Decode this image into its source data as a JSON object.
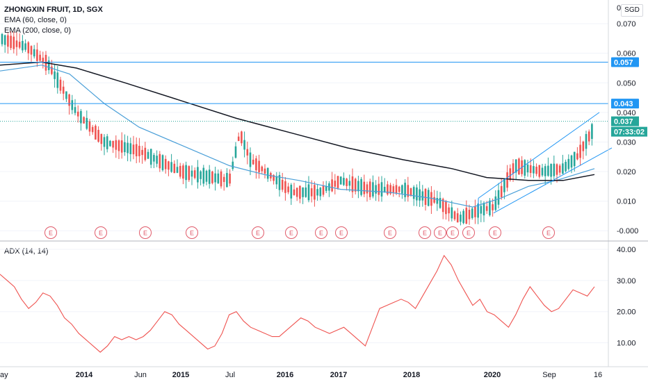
{
  "chart_data": [
    {
      "type": "candlestick",
      "title": "ZHONGXIN FRUIT, 1D, SGX",
      "currency": "SGD",
      "top_cut_tick": "0",
      "y_ticks": [
        0.07,
        0.06,
        0.05,
        0.04,
        0.03,
        0.02,
        0.01,
        0.0
      ],
      "y_tick_labels": [
        "0.070",
        "0.060",
        "0.050",
        "0.040",
        "0.030",
        "0.020",
        "0.010",
        "-0.000"
      ],
      "ylim": [
        -0.003,
        0.078
      ],
      "x_tick_labels": [
        "ay",
        "2014",
        "Jun",
        "2015",
        "Jul",
        "2016",
        "2017",
        "2018",
        "2020",
        "Sep",
        "16"
      ],
      "indicators": [
        {
          "name": "EMA (60, close, 0)",
          "color": "#4a9fd8"
        },
        {
          "name": "EMA (200, close, 0)",
          "color": "#131722"
        }
      ],
      "horizontal_levels": [
        {
          "value": 0.057,
          "label": "0.057",
          "color": "#2196f3"
        },
        {
          "value": 0.043,
          "label": "0.043",
          "color": "#2196f3"
        }
      ],
      "last_price": {
        "value": 0.037,
        "label": "0.037",
        "countdown": "07:33:02",
        "color": "#26a69a"
      },
      "earnings_marker": "E",
      "earnings_count": 15,
      "up_color": "#26a69a",
      "down_color": "#ef5350"
    },
    {
      "type": "line",
      "title": "ADX (14, 14)",
      "y_ticks": [
        40,
        30,
        20,
        10
      ],
      "y_tick_labels": [
        "40.00",
        "30.00",
        "20.00",
        "10.00"
      ],
      "ylim": [
        3,
        42
      ],
      "color": "#ef5350",
      "values": [
        32,
        30,
        28,
        24,
        21,
        23,
        26,
        25,
        22,
        18,
        16,
        13,
        11,
        9,
        7,
        9,
        12,
        11,
        12,
        11,
        12,
        14,
        17,
        20,
        19,
        16,
        14,
        12,
        10,
        8,
        9,
        13,
        19,
        20,
        17,
        15,
        14,
        13,
        12,
        12,
        14,
        16,
        18,
        17,
        15,
        14,
        13,
        14,
        15,
        13,
        11,
        9,
        15,
        21,
        22,
        23,
        24,
        23,
        21,
        25,
        29,
        33,
        38,
        35,
        30,
        26,
        22,
        24,
        20,
        19,
        17,
        15,
        19,
        24,
        28,
        25,
        22,
        20,
        21,
        24,
        27,
        26,
        25,
        28
      ]
    }
  ]
}
